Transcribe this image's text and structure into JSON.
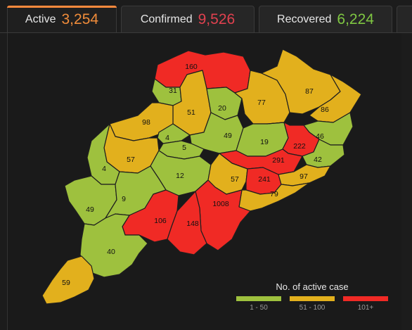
{
  "tabs": [
    {
      "label": "Active",
      "value": "3,254",
      "color": "#f08c3a",
      "active": true
    },
    {
      "label": "Confirmed",
      "value": "9,526",
      "color": "#e0414f",
      "active": false
    },
    {
      "label": "Recovered",
      "value": "6,224",
      "color": "#7fc742",
      "active": false
    }
  ],
  "map": {
    "colors": {
      "low": "#9ec13e",
      "mid": "#e2b01d",
      "high": "#f02a25"
    },
    "districts": [
      {
        "value": "160",
        "level": "high"
      },
      {
        "value": "31",
        "level": "low"
      },
      {
        "value": "51",
        "level": "mid"
      },
      {
        "value": "20",
        "level": "low"
      },
      {
        "value": "77",
        "level": "mid"
      },
      {
        "value": "87",
        "level": "mid"
      },
      {
        "value": "86",
        "level": "mid"
      },
      {
        "value": "98",
        "level": "mid"
      },
      {
        "value": "4",
        "level": "low"
      },
      {
        "value": "49",
        "level": "low"
      },
      {
        "value": "19",
        "level": "low"
      },
      {
        "value": "46",
        "level": "low"
      },
      {
        "value": "5",
        "level": "low"
      },
      {
        "value": "222",
        "level": "high"
      },
      {
        "value": "57",
        "level": "mid"
      },
      {
        "value": "4",
        "level": "low"
      },
      {
        "value": "291",
        "level": "high"
      },
      {
        "value": "42",
        "level": "low"
      },
      {
        "value": "12",
        "level": "low"
      },
      {
        "value": "57",
        "level": "mid"
      },
      {
        "value": "241",
        "level": "high"
      },
      {
        "value": "97",
        "level": "mid"
      },
      {
        "value": "79",
        "level": "mid"
      },
      {
        "value": "49",
        "level": "low"
      },
      {
        "value": "9",
        "level": "low"
      },
      {
        "value": "1008",
        "level": "high"
      },
      {
        "value": "106",
        "level": "high"
      },
      {
        "value": "148",
        "level": "high"
      },
      {
        "value": "40",
        "level": "low"
      },
      {
        "value": "59",
        "level": "mid"
      }
    ]
  },
  "legend": {
    "title": "No. of active case",
    "items": [
      {
        "label": "1 - 50",
        "color": "#9ec13e"
      },
      {
        "label": "51 - 100",
        "color": "#e2b01d"
      },
      {
        "label": "101+",
        "color": "#f02a25"
      }
    ]
  }
}
